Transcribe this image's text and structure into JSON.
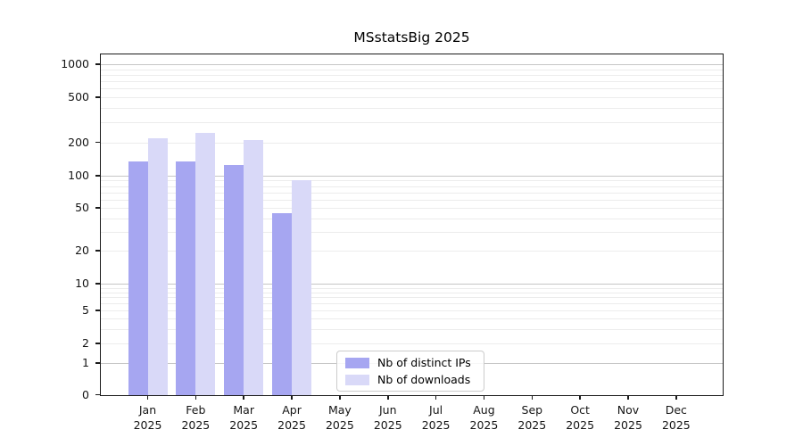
{
  "chart_data": {
    "type": "bar",
    "title": "MSstatsBig 2025",
    "categories": [
      "Jan",
      "Feb",
      "Mar",
      "Apr",
      "May",
      "Jun",
      "Jul",
      "Aug",
      "Sep",
      "Oct",
      "Nov",
      "Dec"
    ],
    "x_tick_year": "2025",
    "series": [
      {
        "name": "Nb of distinct IPs",
        "color": "#a6a6f1",
        "values": [
          135,
          136,
          125,
          45,
          0,
          0,
          0,
          0,
          0,
          0,
          0,
          0
        ]
      },
      {
        "name": "Nb of downloads",
        "color": "#d9d9f8",
        "values": [
          220,
          245,
          213,
          92,
          0,
          0,
          0,
          0,
          0,
          0,
          0,
          0
        ]
      }
    ],
    "y_ticks": [
      0,
      1,
      2,
      5,
      10,
      20,
      50,
      100,
      200,
      500,
      1000
    ],
    "y_scale": "log-like (0,1,2,5,10,20,50,100,200,500,1000)",
    "ylim": [
      0,
      1200
    ],
    "xlabel": "",
    "ylabel": "",
    "grid": true,
    "legend_position": "inside-bottom-center"
  },
  "colors": {
    "bar_distinct_ips": "#a6a6f1",
    "bar_downloads": "#d9d9f8",
    "grid_major": "#c6c6c6",
    "grid_minor": "#ececec",
    "axis": "#1a1a1a",
    "legend_border": "#cccccc",
    "background": "#ffffff"
  }
}
